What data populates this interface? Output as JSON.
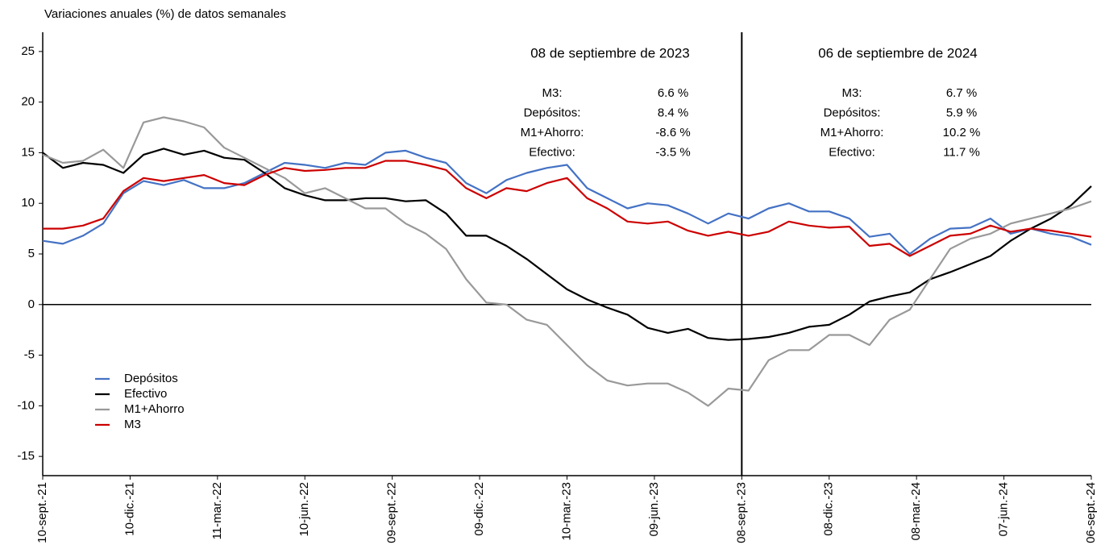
{
  "chart_data": {
    "type": "line",
    "title": "Variaciones anuales (%) de datos semanales",
    "x": [
      "2021-09-10",
      "2021-10-01",
      "2021-10-22",
      "2021-11-12",
      "2021-12-03",
      "2021-12-24",
      "2022-01-14",
      "2022-02-04",
      "2022-02-25",
      "2022-03-18",
      "2022-04-08",
      "2022-04-29",
      "2022-05-20",
      "2022-06-10",
      "2022-07-01",
      "2022-07-22",
      "2022-08-12",
      "2022-09-02",
      "2022-09-23",
      "2022-10-14",
      "2022-11-04",
      "2022-11-25",
      "2022-12-16",
      "2023-01-06",
      "2023-01-27",
      "2023-02-17",
      "2023-03-10",
      "2023-03-31",
      "2023-04-21",
      "2023-05-12",
      "2023-06-02",
      "2023-06-23",
      "2023-07-14",
      "2023-08-04",
      "2023-08-25",
      "2023-09-15",
      "2023-10-06",
      "2023-10-27",
      "2023-11-17",
      "2023-12-08",
      "2023-12-29",
      "2024-01-19",
      "2024-02-09",
      "2024-03-01",
      "2024-03-22",
      "2024-04-12",
      "2024-05-03",
      "2024-05-24",
      "2024-06-14",
      "2024-07-05",
      "2024-07-26",
      "2024-08-16",
      "2024-09-06"
    ],
    "series": [
      {
        "name": "Depósitos",
        "color": "#4472c4",
        "values": [
          6.3,
          6.0,
          6.8,
          8.0,
          11.0,
          12.2,
          11.8,
          12.3,
          11.5,
          11.5,
          12.0,
          13.0,
          14.0,
          13.8,
          13.5,
          14.0,
          13.8,
          15.0,
          15.2,
          14.5,
          14.0,
          12.0,
          11.0,
          12.3,
          13.0,
          13.5,
          13.8,
          11.5,
          10.5,
          9.5,
          10.0,
          9.8,
          9.0,
          8.0,
          9.0,
          8.5,
          9.5,
          10.0,
          9.2,
          9.2,
          8.5,
          6.7,
          7.0,
          5.0,
          6.5,
          7.5,
          7.6,
          8.5,
          7.0,
          7.5,
          7.0,
          6.7,
          5.9
        ]
      },
      {
        "name": "Efectivo",
        "color": "#000000",
        "values": [
          15.0,
          13.5,
          14.0,
          13.8,
          13.0,
          14.8,
          15.4,
          14.8,
          15.2,
          14.5,
          14.3,
          13.0,
          11.5,
          10.8,
          10.3,
          10.3,
          10.5,
          10.5,
          10.2,
          10.3,
          9.0,
          6.8,
          6.8,
          5.8,
          4.5,
          3.0,
          1.5,
          0.5,
          -0.3,
          -1.0,
          -2.3,
          -2.8,
          -2.4,
          -3.3,
          -3.5,
          -3.4,
          -3.2,
          -2.8,
          -2.2,
          -2.0,
          -1.0,
          0.3,
          0.8,
          1.2,
          2.5,
          3.2,
          4.0,
          4.8,
          6.3,
          7.5,
          8.5,
          9.8,
          11.7
        ]
      },
      {
        "name": "M1+Ahorro",
        "color": "#999999",
        "values": [
          14.8,
          14.0,
          14.2,
          15.3,
          13.5,
          18.0,
          18.5,
          18.1,
          17.5,
          15.5,
          14.5,
          13.5,
          12.5,
          11.0,
          11.5,
          10.5,
          9.5,
          9.5,
          8.0,
          7.0,
          5.5,
          2.5,
          0.2,
          0.0,
          -1.5,
          -2.0,
          -4.0,
          -6.0,
          -7.5,
          -8.0,
          -7.8,
          -7.8,
          -8.7,
          -10.0,
          -8.3,
          -8.5,
          -5.5,
          -4.5,
          -4.5,
          -3.0,
          -3.0,
          -4.0,
          -1.5,
          -0.5,
          2.5,
          5.5,
          6.5,
          7.0,
          8.0,
          8.5,
          9.0,
          9.5,
          10.2
        ]
      },
      {
        "name": "M3",
        "color": "#cc0000",
        "values": [
          7.5,
          7.5,
          7.8,
          8.5,
          11.2,
          12.5,
          12.2,
          12.5,
          12.8,
          12.0,
          11.8,
          12.8,
          13.5,
          13.2,
          13.3,
          13.5,
          13.5,
          14.2,
          14.2,
          13.8,
          13.3,
          11.5,
          10.5,
          11.5,
          11.2,
          12.0,
          12.5,
          10.5,
          9.5,
          8.2,
          8.0,
          8.2,
          7.3,
          6.8,
          7.2,
          6.8,
          7.2,
          8.2,
          7.8,
          7.6,
          7.7,
          5.8,
          6.0,
          4.8,
          5.8,
          6.8,
          7.0,
          7.8,
          7.2,
          7.5,
          7.3,
          7.0,
          6.7
        ]
      }
    ],
    "xlim": [
      "2021-09-10",
      "2024-09-06"
    ],
    "xticks": [
      {
        "value": "2021-09-10",
        "label": "10-sept.-21"
      },
      {
        "value": "2021-12-10",
        "label": "10-dic.-21"
      },
      {
        "value": "2022-03-11",
        "label": "11-mar.-22"
      },
      {
        "value": "2022-06-10",
        "label": "10-jun.-22"
      },
      {
        "value": "2022-09-09",
        "label": "09-sept.-22"
      },
      {
        "value": "2022-12-09",
        "label": "09-dic.-22"
      },
      {
        "value": "2023-03-10",
        "label": "10-mar.-23"
      },
      {
        "value": "2023-06-09",
        "label": "09-jun.-23"
      },
      {
        "value": "2023-09-08",
        "label": "08-sept.-23"
      },
      {
        "value": "2023-12-08",
        "label": "08-dic.-23"
      },
      {
        "value": "2024-03-08",
        "label": "08-mar.-24"
      },
      {
        "value": "2024-06-07",
        "label": "07-jun.-24"
      },
      {
        "value": "2024-09-06",
        "label": "06-sept.-24"
      }
    ],
    "ylim": [
      -16.9,
      26.9
    ],
    "yticks": [
      -15,
      -10,
      -5,
      0,
      5,
      10,
      15,
      20,
      25
    ],
    "hline": 0,
    "vline": "2023-09-08",
    "legend": "lower left",
    "annotations": [
      {
        "title": "08 de septiembre de 2023",
        "rows": [
          [
            "M3:",
            "6.6 %"
          ],
          [
            "Depósitos:",
            "8.4 %"
          ],
          [
            "M1+Ahorro:",
            "-8.6 %"
          ],
          [
            "Efectivo:",
            "-3.5 %"
          ]
        ]
      },
      {
        "title": "06 de septiembre de 2024",
        "rows": [
          [
            "M3:",
            "6.7 %"
          ],
          [
            "Depósitos:",
            "5.9 %"
          ],
          [
            "M1+Ahorro:",
            "10.2 %"
          ],
          [
            "Efectivo:",
            "11.7 %"
          ]
        ]
      }
    ]
  }
}
